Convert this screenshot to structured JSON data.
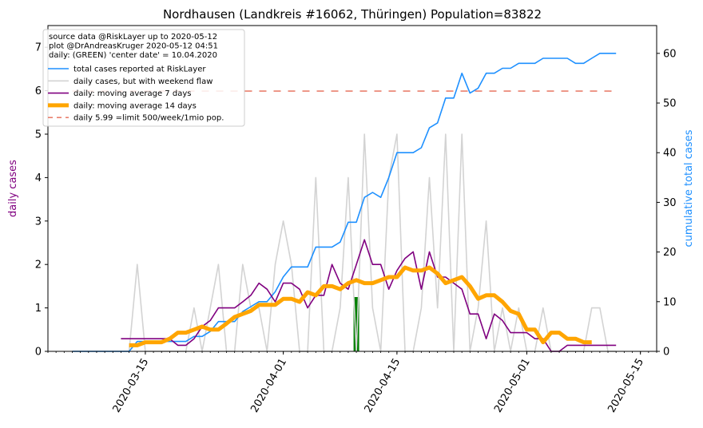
{
  "chart_data": {
    "type": "line",
    "title": "Nordhausen (Landkreis #16062, Thüringen) Population=83822",
    "ylabel_left": "daily cases",
    "ylabel_right": "cumulative total cases",
    "xlabel": "",
    "ylim_left": [
      0,
      7.5
    ],
    "ylim_right": [
      0,
      65.6
    ],
    "xlim": [
      "2020-03-03",
      "2020-05-17"
    ],
    "yticks_left": [
      0,
      1,
      2,
      3,
      4,
      5,
      6,
      7
    ],
    "yticks_right": [
      0,
      10,
      20,
      30,
      40,
      50,
      60
    ],
    "xticks": [
      "2020-03-15",
      "2020-04-01",
      "2020-04-15",
      "2020-05-01",
      "2020-05-15"
    ],
    "grid": false,
    "legend_position": "top-left",
    "legend_header": [
      "source data @RiskLayer up to 2020-05-12",
      "plot @DrAndreasKruger 2020-05-12 04:51",
      "daily: (GREEN) 'center date' = 10.04.2020"
    ],
    "colors": {
      "total": "#1e90ff",
      "daily": "#d3d3d3",
      "ma7": "#800080",
      "ma14": "#ffa500",
      "limit": "#e9806e",
      "center": "#008000",
      "left_axis_label": "#800080",
      "right_axis_label": "#1e90ff"
    },
    "center_date": {
      "x": "2020-04-10",
      "value": 1.25
    },
    "series": [
      {
        "name": "total cases reported at RiskLayer",
        "axis": "right",
        "x": [
          "2020-03-06",
          "2020-03-07",
          "2020-03-08",
          "2020-03-09",
          "2020-03-10",
          "2020-03-11",
          "2020-03-12",
          "2020-03-13",
          "2020-03-14",
          "2020-03-15",
          "2020-03-16",
          "2020-03-17",
          "2020-03-18",
          "2020-03-19",
          "2020-03-20",
          "2020-03-21",
          "2020-03-22",
          "2020-03-23",
          "2020-03-24",
          "2020-03-25",
          "2020-03-26",
          "2020-03-27",
          "2020-03-28",
          "2020-03-29",
          "2020-03-30",
          "2020-03-31",
          "2020-04-01",
          "2020-04-02",
          "2020-04-03",
          "2020-04-04",
          "2020-04-05",
          "2020-04-06",
          "2020-04-07",
          "2020-04-08",
          "2020-04-09",
          "2020-04-10",
          "2020-04-11",
          "2020-04-12",
          "2020-04-13",
          "2020-04-14",
          "2020-04-15",
          "2020-04-16",
          "2020-04-17",
          "2020-04-18",
          "2020-04-19",
          "2020-04-20",
          "2020-04-21",
          "2020-04-22",
          "2020-04-23",
          "2020-04-24",
          "2020-04-25",
          "2020-04-26",
          "2020-04-27",
          "2020-04-28",
          "2020-04-29",
          "2020-04-30",
          "2020-05-01",
          "2020-05-02",
          "2020-05-03",
          "2020-05-04",
          "2020-05-05",
          "2020-05-06",
          "2020-05-07",
          "2020-05-08",
          "2020-05-09",
          "2020-05-10",
          "2020-05-11",
          "2020-05-12"
        ],
        "values": [
          0,
          0,
          0,
          0,
          0,
          0,
          0,
          0,
          2,
          2,
          2,
          2,
          2,
          2,
          2,
          3,
          3,
          4,
          6,
          6,
          6,
          8,
          9,
          10,
          10,
          12,
          15,
          17,
          17,
          17,
          21,
          21,
          21,
          22,
          26,
          26,
          31,
          32,
          31,
          35,
          40,
          40,
          40,
          41,
          45,
          46,
          51,
          51,
          56,
          52,
          53,
          56,
          56,
          57,
          57,
          58,
          58,
          58,
          59,
          59,
          59,
          59,
          58,
          58,
          59,
          60,
          60,
          60
        ]
      },
      {
        "name": "daily cases, but with weekend flaw",
        "axis": "left",
        "x": [
          "2020-03-06",
          "2020-03-07",
          "2020-03-08",
          "2020-03-09",
          "2020-03-10",
          "2020-03-11",
          "2020-03-12",
          "2020-03-13",
          "2020-03-14",
          "2020-03-15",
          "2020-03-16",
          "2020-03-17",
          "2020-03-18",
          "2020-03-19",
          "2020-03-20",
          "2020-03-21",
          "2020-03-22",
          "2020-03-23",
          "2020-03-24",
          "2020-03-25",
          "2020-03-26",
          "2020-03-27",
          "2020-03-28",
          "2020-03-29",
          "2020-03-30",
          "2020-03-31",
          "2020-04-01",
          "2020-04-02",
          "2020-04-03",
          "2020-04-04",
          "2020-04-05",
          "2020-04-06",
          "2020-04-07",
          "2020-04-08",
          "2020-04-09",
          "2020-04-10",
          "2020-04-11",
          "2020-04-12",
          "2020-04-13",
          "2020-04-14",
          "2020-04-15",
          "2020-04-16",
          "2020-04-17",
          "2020-04-18",
          "2020-04-19",
          "2020-04-20",
          "2020-04-21",
          "2020-04-22",
          "2020-04-23",
          "2020-04-24",
          "2020-04-25",
          "2020-04-26",
          "2020-04-27",
          "2020-04-28",
          "2020-04-29",
          "2020-04-30",
          "2020-05-01",
          "2020-05-02",
          "2020-05-03",
          "2020-05-04",
          "2020-05-05",
          "2020-05-06",
          "2020-05-07",
          "2020-05-08",
          "2020-05-09",
          "2020-05-10",
          "2020-05-11",
          "2020-05-12"
        ],
        "values": [
          0,
          0,
          0,
          0,
          0,
          0,
          0,
          0,
          2,
          0,
          0,
          0,
          0,
          0,
          0,
          1,
          0,
          1,
          2,
          0,
          0,
          2,
          1,
          1,
          0,
          2,
          3,
          2,
          0,
          0,
          4,
          0,
          0,
          1,
          4,
          0,
          5,
          1,
          0,
          4,
          5,
          0,
          0,
          1,
          4,
          1,
          5,
          0,
          5,
          0,
          1,
          3,
          0,
          1,
          0,
          1,
          0,
          0,
          1,
          0,
          0,
          0,
          0,
          0,
          1,
          1,
          0,
          0
        ]
      },
      {
        "name": "daily: moving average 7 days",
        "axis": "left",
        "x": [
          "2020-03-12",
          "2020-03-13",
          "2020-03-14",
          "2020-03-15",
          "2020-03-16",
          "2020-03-17",
          "2020-03-18",
          "2020-03-19",
          "2020-03-20",
          "2020-03-21",
          "2020-03-22",
          "2020-03-23",
          "2020-03-24",
          "2020-03-25",
          "2020-03-26",
          "2020-03-27",
          "2020-03-28",
          "2020-03-29",
          "2020-03-30",
          "2020-03-31",
          "2020-04-01",
          "2020-04-02",
          "2020-04-03",
          "2020-04-04",
          "2020-04-05",
          "2020-04-06",
          "2020-04-07",
          "2020-04-08",
          "2020-04-09",
          "2020-04-10",
          "2020-04-11",
          "2020-04-12",
          "2020-04-13",
          "2020-04-14",
          "2020-04-15",
          "2020-04-16",
          "2020-04-17",
          "2020-04-18",
          "2020-04-19",
          "2020-04-20",
          "2020-04-21",
          "2020-04-22",
          "2020-04-23",
          "2020-04-24",
          "2020-04-25",
          "2020-04-26",
          "2020-04-27",
          "2020-04-28",
          "2020-04-29",
          "2020-04-30",
          "2020-05-01",
          "2020-05-02",
          "2020-05-03",
          "2020-05-04",
          "2020-05-05",
          "2020-05-06",
          "2020-05-07",
          "2020-05-08",
          "2020-05-09",
          "2020-05-10",
          "2020-05-11",
          "2020-05-12"
        ],
        "values": [
          0.29,
          0.29,
          0.29,
          0.29,
          0.29,
          0.29,
          0.29,
          0.14,
          0.14,
          0.29,
          0.57,
          0.71,
          1.0,
          1.0,
          1.0,
          1.14,
          1.29,
          1.57,
          1.43,
          1.14,
          1.57,
          1.57,
          1.43,
          1.0,
          1.29,
          1.29,
          2.0,
          1.57,
          1.43,
          2.0,
          2.57,
          2.0,
          2.0,
          1.43,
          1.86,
          2.14,
          2.29,
          1.43,
          2.29,
          1.71,
          1.71,
          1.57,
          1.43,
          0.86,
          0.86,
          0.29,
          0.86,
          0.71,
          0.43,
          0.43,
          0.43,
          0.29,
          0.29,
          0.0,
          0.0,
          0.14,
          0.14,
          0.14,
          0.14,
          0.14,
          0.14,
          0.14
        ]
      },
      {
        "name": "daily: moving average 14 days",
        "axis": "left",
        "x": [
          "2020-03-13",
          "2020-03-14",
          "2020-03-15",
          "2020-03-16",
          "2020-03-17",
          "2020-03-18",
          "2020-03-19",
          "2020-03-20",
          "2020-03-21",
          "2020-03-22",
          "2020-03-23",
          "2020-03-24",
          "2020-03-25",
          "2020-03-26",
          "2020-03-27",
          "2020-03-28",
          "2020-03-29",
          "2020-03-30",
          "2020-03-31",
          "2020-04-01",
          "2020-04-02",
          "2020-04-03",
          "2020-04-04",
          "2020-04-05",
          "2020-04-06",
          "2020-04-07",
          "2020-04-08",
          "2020-04-09",
          "2020-04-10",
          "2020-04-11",
          "2020-04-12",
          "2020-04-13",
          "2020-04-14",
          "2020-04-15",
          "2020-04-16",
          "2020-04-17",
          "2020-04-18",
          "2020-04-19",
          "2020-04-20",
          "2020-04-21",
          "2020-04-22",
          "2020-04-23",
          "2020-04-24",
          "2020-04-25",
          "2020-04-26",
          "2020-04-27",
          "2020-04-28",
          "2020-04-29",
          "2020-04-30",
          "2020-05-01",
          "2020-05-02",
          "2020-05-03",
          "2020-05-04",
          "2020-05-05",
          "2020-05-06",
          "2020-05-07",
          "2020-05-08",
          "2020-05-09"
        ],
        "values": [
          0.14,
          0.14,
          0.21,
          0.21,
          0.21,
          0.29,
          0.43,
          0.43,
          0.5,
          0.57,
          0.5,
          0.5,
          0.64,
          0.79,
          0.86,
          0.93,
          1.07,
          1.07,
          1.07,
          1.21,
          1.21,
          1.14,
          1.36,
          1.29,
          1.5,
          1.5,
          1.43,
          1.57,
          1.64,
          1.57,
          1.57,
          1.64,
          1.71,
          1.71,
          1.93,
          1.86,
          1.86,
          1.93,
          1.79,
          1.57,
          1.64,
          1.71,
          1.5,
          1.21,
          1.29,
          1.29,
          1.14,
          0.93,
          0.86,
          0.5,
          0.5,
          0.21,
          0.43,
          0.43,
          0.29,
          0.29,
          0.21,
          0.21
        ]
      },
      {
        "name": "daily 5.99 =limit 500/week/1mio pop.",
        "axis": "left",
        "x": [
          "2020-03-06",
          "2020-05-12"
        ],
        "values": [
          5.99,
          5.99
        ]
      }
    ]
  }
}
